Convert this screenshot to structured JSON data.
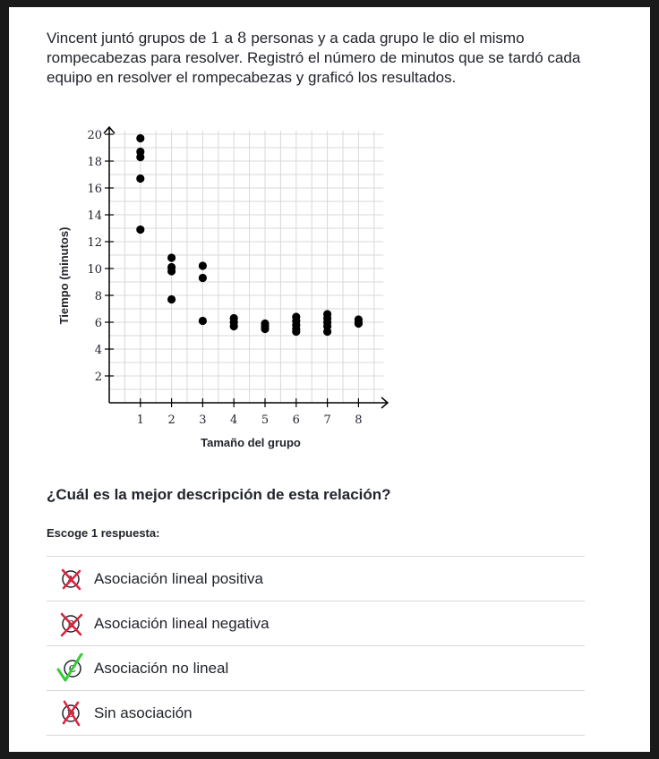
{
  "question": {
    "part1": "Vincent juntó grupos de ",
    "n1": "1",
    "part2": " a ",
    "n2": "8",
    "part3": " personas y a cada grupo le dio el mismo rompecabezas para resolver. Registró el número de minutos que se tardó cada equipo en resolver el rompecabezas y graficó los resultados."
  },
  "prompt": "¿Cuál es la mejor descripción de esta relación?",
  "choose_label": "Escoge 1 respuesta:",
  "choices": [
    {
      "letter": "A",
      "label": "Asociación lineal positiva",
      "status": "crossed"
    },
    {
      "letter": "B",
      "label": "Asociación lineal negativa",
      "status": "crossed"
    },
    {
      "letter": "C",
      "label": "Asociación no lineal",
      "status": "checked"
    },
    {
      "letter": "D",
      "label": "Sin asociación",
      "status": "crossed"
    }
  ],
  "colors": {
    "cross": "#e0203a",
    "check": "#33cc33",
    "text": "#21242c",
    "grid": "#d8d8d8"
  },
  "chart_data": {
    "type": "scatter",
    "xlabel": "Tamaño del grupo",
    "ylabel": "Tiempo (minutos)",
    "xlim": [
      0,
      8.8
    ],
    "ylim": [
      0,
      20.5
    ],
    "x_ticks": [
      "1",
      "2",
      "3",
      "4",
      "5",
      "6",
      "7",
      "8"
    ],
    "y_ticks": [
      "2",
      "4",
      "6",
      "8",
      "10",
      "12",
      "14",
      "16",
      "18",
      "20"
    ],
    "grid": true,
    "points": [
      {
        "x": 1,
        "y": 19.7
      },
      {
        "x": 1,
        "y": 18.7
      },
      {
        "x": 1,
        "y": 18.3
      },
      {
        "x": 1,
        "y": 16.7
      },
      {
        "x": 1,
        "y": 12.9
      },
      {
        "x": 2,
        "y": 10.8
      },
      {
        "x": 2,
        "y": 10.1
      },
      {
        "x": 2,
        "y": 9.8
      },
      {
        "x": 2,
        "y": 7.7
      },
      {
        "x": 3,
        "y": 10.2
      },
      {
        "x": 3,
        "y": 9.3
      },
      {
        "x": 3,
        "y": 6.1
      },
      {
        "x": 4,
        "y": 6.3
      },
      {
        "x": 4,
        "y": 6.0
      },
      {
        "x": 4,
        "y": 5.7
      },
      {
        "x": 5,
        "y": 5.9
      },
      {
        "x": 5,
        "y": 5.7
      },
      {
        "x": 5,
        "y": 5.5
      },
      {
        "x": 6,
        "y": 6.4
      },
      {
        "x": 6,
        "y": 6.1
      },
      {
        "x": 6,
        "y": 5.8
      },
      {
        "x": 6,
        "y": 5.5
      },
      {
        "x": 6,
        "y": 5.3
      },
      {
        "x": 7,
        "y": 6.6
      },
      {
        "x": 7,
        "y": 6.3
      },
      {
        "x": 7,
        "y": 6.0
      },
      {
        "x": 7,
        "y": 5.7
      },
      {
        "x": 7,
        "y": 5.3
      },
      {
        "x": 8,
        "y": 6.2
      },
      {
        "x": 8,
        "y": 6.0
      },
      {
        "x": 8,
        "y": 5.9
      }
    ]
  }
}
